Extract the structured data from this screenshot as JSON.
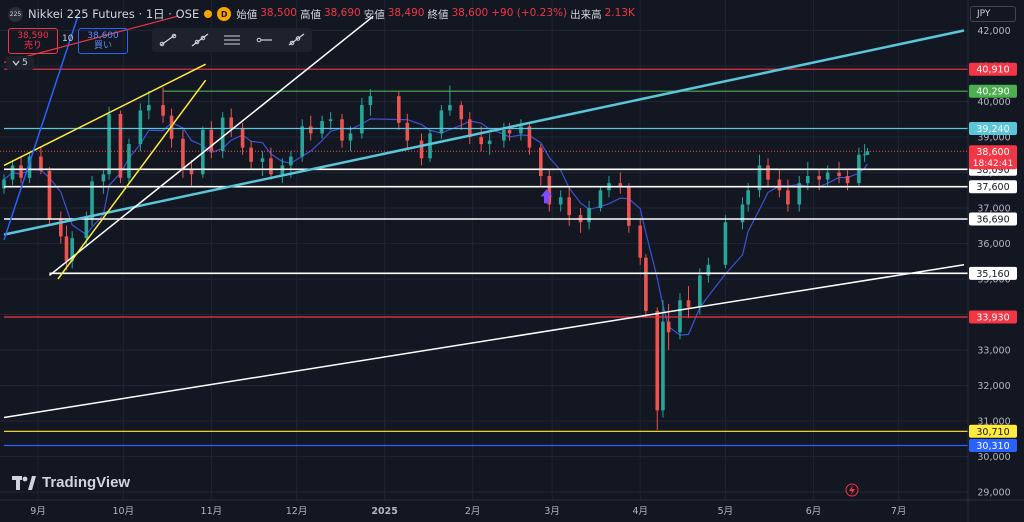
{
  "header": {
    "symbol_badge": "225",
    "title": "Nikkei 225 Futures · 1日 · OSE",
    "interval_badge": "D",
    "ohlc": [
      {
        "label": "始値",
        "value": "38,500"
      },
      {
        "label": "高値",
        "value": "38,690"
      },
      {
        "label": "安値",
        "value": "38,490"
      },
      {
        "label": "終値",
        "value": "38,600"
      },
      {
        "label": "",
        "value": "+90 (+0.23%)"
      },
      {
        "label": "出来高",
        "value": "2.13K"
      }
    ]
  },
  "trade": {
    "sell_price": "38,590",
    "sell_label": "売り",
    "spread": "10",
    "buy_price": "38,600",
    "buy_label": "買い"
  },
  "indicator_toggle": "5",
  "currency": "JPY",
  "logo_text": "TradingView",
  "colors": {
    "background": "#131722",
    "up": "#26a69a",
    "down": "#ef5350",
    "red_line": "#f23645",
    "green_line": "#4caf50",
    "cyan_line": "#5bc6d9",
    "yellow_line": "#ffeb3b",
    "blue_line": "#2962ff",
    "ma_line": "#3f51d6",
    "white_line": "#ffffff"
  },
  "chart_data": {
    "type": "candlestick",
    "y_ticks": [
      "42,000",
      "41,000",
      "40,000",
      "39,000",
      "38,000",
      "37,000",
      "36,000",
      "35,000",
      "34,000",
      "33,000",
      "32,000",
      "31,000",
      "30,000",
      "29,000"
    ],
    "y_range": [
      28700,
      42400
    ],
    "x_range": [
      "2024-08-20",
      "2025-07-24"
    ],
    "x_ticks": [
      {
        "label": "9月",
        "date": "2024-09-01"
      },
      {
        "label": "10月",
        "date": "2024-10-01"
      },
      {
        "label": "11月",
        "date": "2024-11-01"
      },
      {
        "label": "12月",
        "date": "2024-12-01"
      },
      {
        "label": "2025",
        "date": "2025-01-01"
      },
      {
        "label": "2月",
        "date": "2025-02-01"
      },
      {
        "label": "3月",
        "date": "2025-03-01"
      },
      {
        "label": "4月",
        "date": "2025-04-01"
      },
      {
        "label": "5月",
        "date": "2025-05-01"
      },
      {
        "label": "6月",
        "date": "2025-06-01"
      },
      {
        "label": "7月",
        "date": "2025-07-01"
      }
    ],
    "last_price": {
      "value": "38,600",
      "countdown": "18:42:41",
      "price": 38600
    },
    "horizontal_levels": [
      {
        "label": "40,910",
        "value": 40910,
        "color": "#f23645",
        "start": "2024-08-20"
      },
      {
        "label": "40,290",
        "value": 40290,
        "color": "#4caf50",
        "start": "2024-10-15"
      },
      {
        "label": "39,240",
        "value": 39240,
        "color": "#5bc6d9",
        "start": "2024-08-20"
      },
      {
        "label": "38,090",
        "value": 38090,
        "color": "#ffffff",
        "start": "2024-08-20"
      },
      {
        "label": "37,600",
        "value": 37600,
        "color": "#ffffff",
        "start": "2024-08-20"
      },
      {
        "label": "36,690",
        "value": 36690,
        "color": "#ffffff",
        "start": "2024-08-20"
      },
      {
        "label": "35,160",
        "value": 35160,
        "color": "#ffffff",
        "start": "2024-09-05"
      },
      {
        "label": "33,930",
        "value": 33930,
        "color": "#f23645",
        "start": "2024-08-20"
      },
      {
        "label": "30,710",
        "value": 30710,
        "color": "#ffeb3b",
        "start": "2024-08-20"
      },
      {
        "label": "30,310",
        "value": 30310,
        "color": "#2962ff",
        "start": "2024-08-20"
      }
    ],
    "trendlines": [
      {
        "color": "#5bc6d9",
        "width": 2.5,
        "from": [
          "2024-08-20",
          36250
        ],
        "to": [
          "2025-07-24",
          42000
        ]
      },
      {
        "color": "#ffffff",
        "width": 1.5,
        "from": [
          "2024-08-20",
          31100
        ],
        "to": [
          "2025-07-24",
          35400
        ]
      },
      {
        "color": "#ffffff",
        "width": 1.5,
        "from": [
          "2024-09-05",
          35100
        ],
        "to": [
          "2024-12-28",
          42400
        ]
      },
      {
        "color": "#ffeb3b",
        "width": 1.5,
        "from": [
          "2024-08-20",
          38200
        ],
        "to": [
          "2024-10-30",
          41050
        ]
      },
      {
        "color": "#ffeb3b",
        "width": 1.5,
        "from": [
          "2024-09-08",
          35000
        ],
        "to": [
          "2024-10-30",
          40600
        ]
      },
      {
        "color": "#2962ff",
        "width": 1.5,
        "from": [
          "2024-08-20",
          36100
        ],
        "to": [
          "2024-09-15",
          42400
        ]
      },
      {
        "color": "#f23645",
        "width": 1.2,
        "from": [
          "2024-08-20",
          41100
        ],
        "to": [
          "2024-10-20",
          42400
        ]
      }
    ],
    "marker": {
      "type": "arrow-up",
      "date": "2025-02-27",
      "price": 37300,
      "color": "#7c4dff"
    },
    "moving_average_visible": true,
    "grid": true,
    "candles": [
      [
        "2024-08-20",
        37550,
        37950,
        37400,
        37800
      ],
      [
        "2024-08-23",
        37800,
        38350,
        37650,
        38200
      ],
      [
        "2024-08-26",
        38200,
        38450,
        37700,
        37850
      ],
      [
        "2024-08-29",
        37850,
        38550,
        37700,
        38450
      ],
      [
        "2024-09-02",
        38450,
        38700,
        37950,
        38050
      ],
      [
        "2024-09-05",
        38050,
        38150,
        36550,
        36700
      ],
      [
        "2024-09-09",
        36700,
        36900,
        36000,
        36200
      ],
      [
        "2024-09-11",
        36200,
        36500,
        35250,
        35500
      ],
      [
        "2024-09-13",
        35500,
        36350,
        35300,
        36150
      ],
      [
        "2024-09-18",
        36150,
        36900,
        35900,
        36700
      ],
      [
        "2024-09-20",
        36700,
        37900,
        36500,
        37750
      ],
      [
        "2024-09-24",
        37750,
        38100,
        37400,
        37950
      ],
      [
        "2024-09-26",
        37950,
        39850,
        37800,
        39650
      ],
      [
        "2024-09-30",
        39650,
        39750,
        37700,
        37850
      ],
      [
        "2024-10-03",
        37850,
        38950,
        37700,
        38800
      ],
      [
        "2024-10-07",
        38800,
        39950,
        38600,
        39750
      ],
      [
        "2024-10-10",
        39750,
        40300,
        39500,
        39900
      ],
      [
        "2024-10-15",
        39900,
        40400,
        39400,
        39600
      ],
      [
        "2024-10-18",
        39600,
        39800,
        38700,
        38950
      ],
      [
        "2024-10-22",
        38950,
        39200,
        37850,
        38100
      ],
      [
        "2024-10-25",
        38100,
        38350,
        37600,
        37950
      ],
      [
        "2024-10-29",
        37950,
        39300,
        37850,
        39200
      ],
      [
        "2024-11-01",
        39200,
        39450,
        38400,
        38600
      ],
      [
        "2024-11-05",
        38600,
        39700,
        38400,
        39550
      ],
      [
        "2024-11-08",
        39550,
        39800,
        39000,
        39250
      ],
      [
        "2024-11-12",
        39250,
        39400,
        38500,
        38700
      ],
      [
        "2024-11-15",
        38700,
        38900,
        38100,
        38300
      ],
      [
        "2024-11-19",
        38300,
        38600,
        37900,
        38400
      ],
      [
        "2024-11-22",
        38400,
        38700,
        37800,
        37950
      ],
      [
        "2024-11-26",
        37950,
        38400,
        37700,
        38200
      ],
      [
        "2024-11-29",
        38200,
        38600,
        37850,
        38450
      ],
      [
        "2024-12-03",
        38450,
        39500,
        38300,
        39300
      ],
      [
        "2024-12-06",
        39300,
        39600,
        38900,
        39100
      ],
      [
        "2024-12-10",
        39100,
        39600,
        38950,
        39450
      ],
      [
        "2024-12-13",
        39450,
        39700,
        39200,
        39500
      ],
      [
        "2024-12-17",
        39500,
        39650,
        38700,
        38900
      ],
      [
        "2024-12-20",
        38900,
        39300,
        38600,
        39100
      ],
      [
        "2024-12-24",
        39100,
        40100,
        38950,
        39900
      ],
      [
        "2024-12-27",
        39900,
        40350,
        39600,
        40150
      ],
      [
        "2025-01-06",
        40150,
        40300,
        39200,
        39400
      ],
      [
        "2025-01-09",
        39400,
        39650,
        38700,
        38900
      ],
      [
        "2025-01-14",
        38900,
        39100,
        38200,
        38400
      ],
      [
        "2025-01-17",
        38400,
        39200,
        38300,
        39100
      ],
      [
        "2025-01-21",
        39100,
        39900,
        38950,
        39750
      ],
      [
        "2025-01-24",
        39750,
        40450,
        39600,
        39900
      ],
      [
        "2025-01-28",
        39900,
        40000,
        39200,
        39500
      ],
      [
        "2025-01-31",
        39500,
        39700,
        38800,
        39000
      ],
      [
        "2025-02-04",
        39000,
        39300,
        38600,
        38800
      ],
      [
        "2025-02-07",
        38800,
        39100,
        38500,
        38900
      ],
      [
        "2025-02-12",
        38900,
        39400,
        38700,
        39200
      ],
      [
        "2025-02-14",
        39200,
        39400,
        38900,
        39100
      ],
      [
        "2025-02-18",
        39100,
        39500,
        38900,
        39300
      ],
      [
        "2025-02-21",
        39300,
        39400,
        38500,
        38700
      ],
      [
        "2025-02-25",
        38700,
        38800,
        37600,
        37900
      ],
      [
        "2025-02-28",
        37900,
        38100,
        36900,
        37100
      ],
      [
        "2025-03-04",
        37100,
        37500,
        36900,
        37300
      ],
      [
        "2025-03-07",
        37300,
        37600,
        36500,
        36800
      ],
      [
        "2025-03-11",
        36800,
        37000,
        36300,
        36600
      ],
      [
        "2025-03-14",
        36600,
        37200,
        36400,
        37000
      ],
      [
        "2025-03-18",
        37000,
        37600,
        36900,
        37500
      ],
      [
        "2025-03-21",
        37500,
        37900,
        37300,
        37700
      ],
      [
        "2025-03-25",
        37700,
        38000,
        37400,
        37600
      ],
      [
        "2025-03-28",
        37600,
        37700,
        36300,
        36500
      ],
      [
        "2025-04-01",
        36500,
        36700,
        35400,
        35600
      ],
      [
        "2025-04-03",
        35600,
        35700,
        33900,
        34100
      ],
      [
        "2025-04-07",
        34100,
        34200,
        30750,
        31300
      ],
      [
        "2025-04-09",
        31300,
        34400,
        31100,
        33800
      ],
      [
        "2025-04-11",
        33800,
        34300,
        33000,
        33500
      ],
      [
        "2025-04-15",
        33500,
        34600,
        33300,
        34400
      ],
      [
        "2025-04-18",
        34400,
        34800,
        33900,
        34200
      ],
      [
        "2025-04-22",
        34200,
        35300,
        34000,
        35100
      ],
      [
        "2025-04-25",
        35100,
        35600,
        34900,
        35400
      ],
      [
        "2025-05-01",
        35400,
        36800,
        35300,
        36600
      ],
      [
        "2025-05-07",
        36600,
        37300,
        36400,
        37100
      ],
      [
        "2025-05-09",
        37100,
        37700,
        36900,
        37500
      ],
      [
        "2025-05-13",
        37500,
        38500,
        37300,
        38200
      ],
      [
        "2025-05-16",
        38200,
        38400,
        37600,
        37800
      ],
      [
        "2025-05-20",
        37800,
        38100,
        37300,
        37500
      ],
      [
        "2025-05-23",
        37500,
        37800,
        36900,
        37100
      ],
      [
        "2025-05-27",
        37100,
        37900,
        36900,
        37700
      ],
      [
        "2025-05-30",
        37700,
        38300,
        37500,
        37900
      ],
      [
        "2025-06-03",
        37900,
        38100,
        37500,
        37800
      ],
      [
        "2025-06-06",
        37800,
        38200,
        37600,
        38000
      ],
      [
        "2025-06-10",
        38000,
        38300,
        37700,
        37900
      ],
      [
        "2025-06-13",
        37900,
        38100,
        37500,
        37700
      ],
      [
        "2025-06-17",
        37700,
        38700,
        37600,
        38500
      ],
      [
        "2025-06-19",
        38500,
        38800,
        38300,
        38510
      ],
      [
        "2025-06-20",
        38500,
        38690,
        38490,
        38600
      ]
    ]
  }
}
